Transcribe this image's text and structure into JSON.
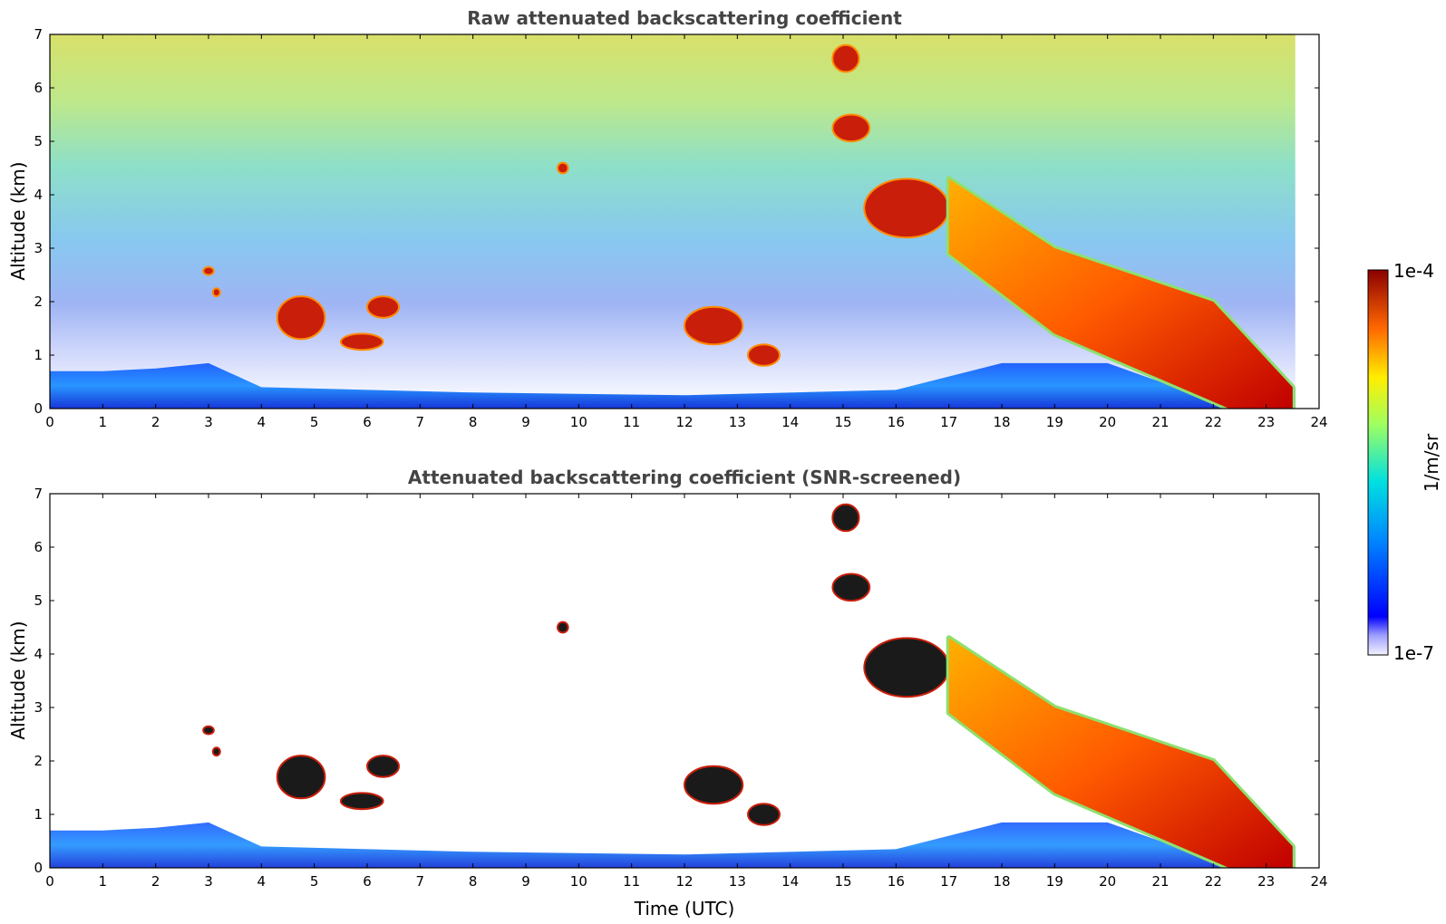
{
  "chart_data": [
    {
      "type": "heatmap",
      "title": "Raw attenuated backscattering coefficient",
      "xlabel": "",
      "ylabel": "Altitude (km)",
      "xlim": [
        0,
        24
      ],
      "ylim": [
        0,
        7
      ],
      "xticks": [
        "0",
        "1",
        "2",
        "3",
        "4",
        "5",
        "6",
        "7",
        "8",
        "9",
        "10",
        "11",
        "12",
        "13",
        "14",
        "15",
        "16",
        "17",
        "18",
        "19",
        "20",
        "21",
        "22",
        "23",
        "24"
      ],
      "yticks": [
        "0",
        "1",
        "2",
        "3",
        "4",
        "5",
        "6",
        "7"
      ],
      "data_end_hour": 23.55,
      "boundary_layer_top_km": [
        [
          0,
          0.7
        ],
        [
          1,
          0.7
        ],
        [
          2,
          0.75
        ],
        [
          3,
          0.85
        ],
        [
          4,
          0.4
        ],
        [
          8,
          0.3
        ],
        [
          12,
          0.25
        ],
        [
          16,
          0.35
        ],
        [
          18,
          0.85
        ],
        [
          20,
          0.85
        ],
        [
          21,
          0.5
        ],
        [
          22,
          0.4
        ]
      ],
      "features": [
        {
          "label": "cloud patch",
          "t": [
            2.9,
            3.1
          ],
          "alt_km": [
            2.5,
            2.65
          ]
        },
        {
          "label": "cloud patch",
          "t": [
            3.1,
            3.2
          ],
          "alt_km": [
            2.1,
            2.25
          ]
        },
        {
          "label": "aerosol layer",
          "t": [
            4.3,
            5.2
          ],
          "alt_km": [
            1.3,
            2.1
          ]
        },
        {
          "label": "aerosol layer",
          "t": [
            5.5,
            6.3
          ],
          "alt_km": [
            1.1,
            1.4
          ]
        },
        {
          "label": "aerosol layer",
          "t": [
            6.0,
            6.6
          ],
          "alt_km": [
            1.7,
            2.1
          ]
        },
        {
          "label": "cloud patch",
          "t": [
            9.6,
            9.8
          ],
          "alt_km": [
            4.4,
            4.6
          ]
        },
        {
          "label": "aerosol layer",
          "t": [
            12.0,
            13.1
          ],
          "alt_km": [
            1.2,
            1.9
          ]
        },
        {
          "label": "aerosol layer",
          "t": [
            13.2,
            13.8
          ],
          "alt_km": [
            0.8,
            1.2
          ]
        },
        {
          "label": "cirrus",
          "t": [
            14.8,
            15.3
          ],
          "alt_km": [
            6.3,
            6.8
          ]
        },
        {
          "label": "cirrus",
          "t": [
            14.8,
            15.5
          ],
          "alt_km": [
            5.0,
            5.5
          ]
        },
        {
          "label": "cloud layer",
          "t": [
            15.4,
            17.0
          ],
          "alt_km": [
            3.2,
            4.3
          ]
        },
        {
          "label": "descending cloud layer",
          "t": [
            17.0,
            23.5
          ],
          "alt_km": [
            0.0,
            4.0
          ]
        }
      ]
    },
    {
      "type": "heatmap",
      "title": "Attenuated backscattering coefficient (SNR-screened)",
      "xlabel": "Time (UTC)",
      "ylabel": "Altitude (km)",
      "xlim": [
        0,
        24
      ],
      "ylim": [
        0,
        7
      ],
      "xticks": [
        "0",
        "1",
        "2",
        "3",
        "4",
        "5",
        "6",
        "7",
        "8",
        "9",
        "10",
        "11",
        "12",
        "13",
        "14",
        "15",
        "16",
        "17",
        "18",
        "19",
        "20",
        "21",
        "22",
        "23",
        "24"
      ],
      "yticks": [
        "0",
        "1",
        "2",
        "3",
        "4",
        "5",
        "6",
        "7"
      ]
    }
  ],
  "colorbar": {
    "max_label": "1e-4",
    "min_label": "1e-7",
    "unit_label": "1/m/sr",
    "scale": "log",
    "range": [
      1e-07,
      0.0001
    ]
  }
}
